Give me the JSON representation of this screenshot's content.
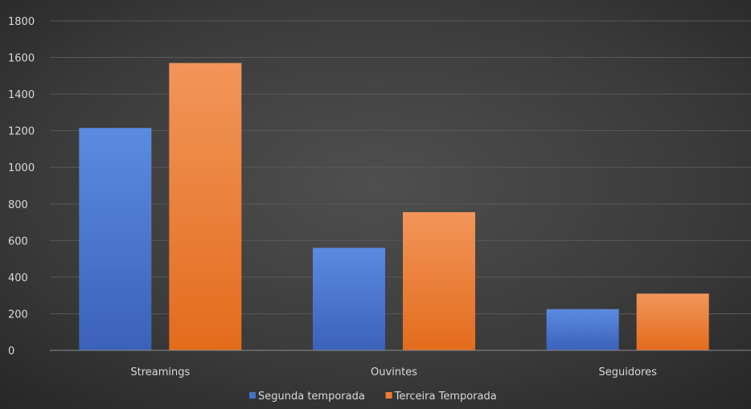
{
  "chart_data": {
    "type": "bar",
    "title": "",
    "xlabel": "",
    "ylabel": "",
    "categories": [
      "Streamings",
      "Ouvintes",
      "Seguidores"
    ],
    "series": [
      {
        "name": "Segunda temporada",
        "values": [
          1215,
          560,
          225
        ]
      },
      {
        "name": "Terceira Temporada",
        "values": [
          1570,
          755,
          310
        ]
      }
    ],
    "ylim": [
      0,
      1800
    ],
    "yticks": [
      0,
      200,
      400,
      600,
      800,
      1000,
      1200,
      1400,
      1600,
      1800
    ],
    "grid": true,
    "legend_position": "bottom"
  },
  "colors": {
    "series": [
      "#4472c4",
      "#ed7d31"
    ],
    "text": "#d9d9d9",
    "grid": "#595959",
    "background": "dark-gray-gradient"
  }
}
